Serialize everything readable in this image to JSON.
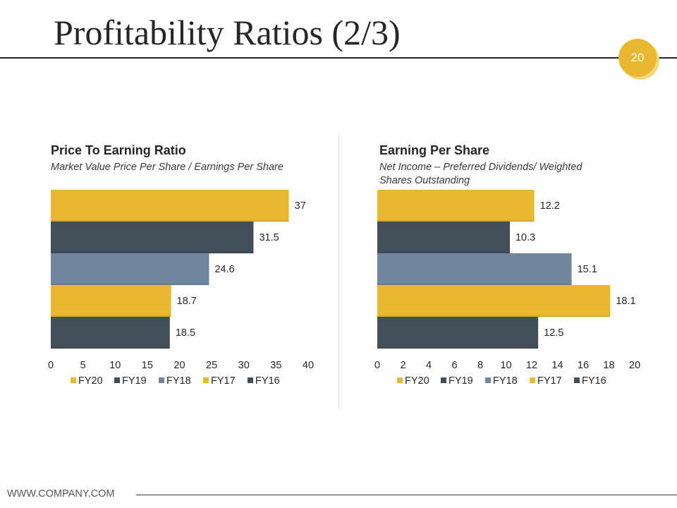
{
  "slide": {
    "title": "Profitability Ratios (2/3)",
    "page_number": "20",
    "footer": "WWW.COMPANY.COM"
  },
  "colors": {
    "gold": "#e9b830",
    "charcoal": "#444e59",
    "slate": "#6f869c",
    "text": "#262626"
  },
  "chart_data": [
    {
      "type": "bar",
      "orientation": "horizontal",
      "title": "Price To Earning Ratio",
      "subtitle": "Market Value Price Per Share / Earnings Per Share",
      "categories": [
        "FY20",
        "FY19",
        "FY18",
        "FY17",
        "FY16"
      ],
      "values": [
        37,
        31.5,
        24.6,
        18.7,
        18.5
      ],
      "value_labels": [
        "37",
        "31.5",
        "24.6",
        "18.7",
        "18.5"
      ],
      "bar_colors": [
        "#e9b830",
        "#444e59",
        "#6f869c",
        "#e9b830",
        "#444e59"
      ],
      "xlim": [
        0,
        40
      ],
      "xticks": [
        "0",
        "5",
        "10",
        "15",
        "20",
        "25",
        "30",
        "35",
        "40"
      ],
      "legend": [
        "FY20",
        "FY19",
        "FY18",
        "FY17",
        "FY16"
      ],
      "legend_position": "bottom",
      "grid": false
    },
    {
      "type": "bar",
      "orientation": "horizontal",
      "title": "Earning Per Share",
      "subtitle": "Net Income – Preferred Dividends/ Weighted Shares Outstanding",
      "categories": [
        "FY20",
        "FY19",
        "FY18",
        "FY17",
        "FY16"
      ],
      "values": [
        12.2,
        10.3,
        15.1,
        18.1,
        12.5
      ],
      "value_labels": [
        "12.2",
        "10.3",
        "15.1",
        "18.1",
        "12.5"
      ],
      "bar_colors": [
        "#e9b830",
        "#444e59",
        "#6f869c",
        "#e9b830",
        "#444e59"
      ],
      "xlim": [
        0,
        20
      ],
      "xticks": [
        "0",
        "2",
        "4",
        "6",
        "8",
        "10",
        "12",
        "14",
        "16",
        "18",
        "20"
      ],
      "legend": [
        "FY20",
        "FY19",
        "FY18",
        "FY17",
        "FY16"
      ],
      "legend_position": "bottom",
      "grid": false
    }
  ]
}
